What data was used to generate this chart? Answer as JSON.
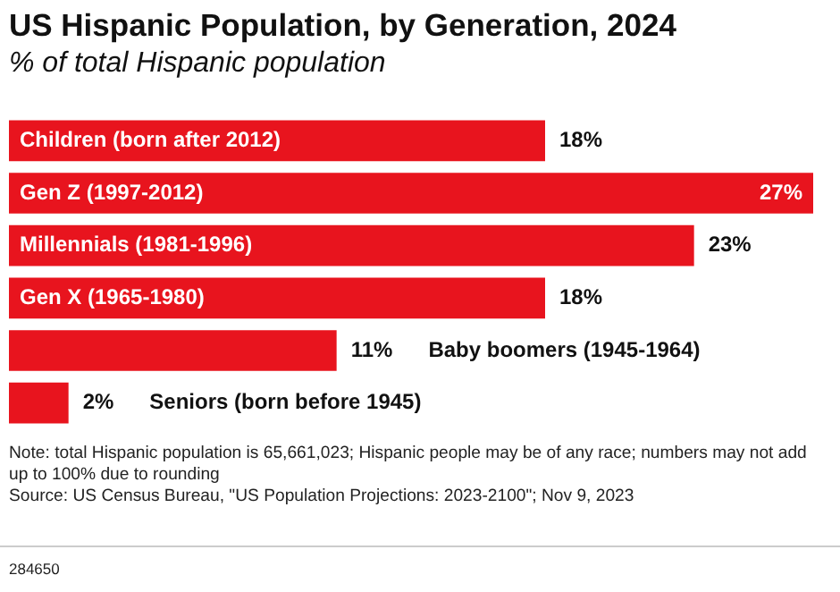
{
  "chart_data": {
    "type": "bar",
    "orientation": "horizontal",
    "title": "US Hispanic Population, by Generation, 2024",
    "subtitle": "% of total Hispanic population",
    "categories": [
      "Children (born after 2012)",
      "Gen Z (1997-2012)",
      "Millennials (1981-1996)",
      "Gen X (1965-1980)",
      "Baby boomers (1945-1964)",
      "Seniors (born before 1945)"
    ],
    "values": [
      18,
      27,
      23,
      18,
      11,
      2
    ],
    "value_labels": [
      "18%",
      "27%",
      "23%",
      "18%",
      "11%",
      "2%"
    ],
    "color": "#e8141e",
    "annotations": [
      "Note: total Hispanic population is 65,661,023; Hispanic people may be of any race; numbers may not add up to 100% due to rounding",
      "Source: US Census Bureau, \"US Population Projections: 2023-2100\"; Nov 9, 2023",
      "284650"
    ]
  }
}
